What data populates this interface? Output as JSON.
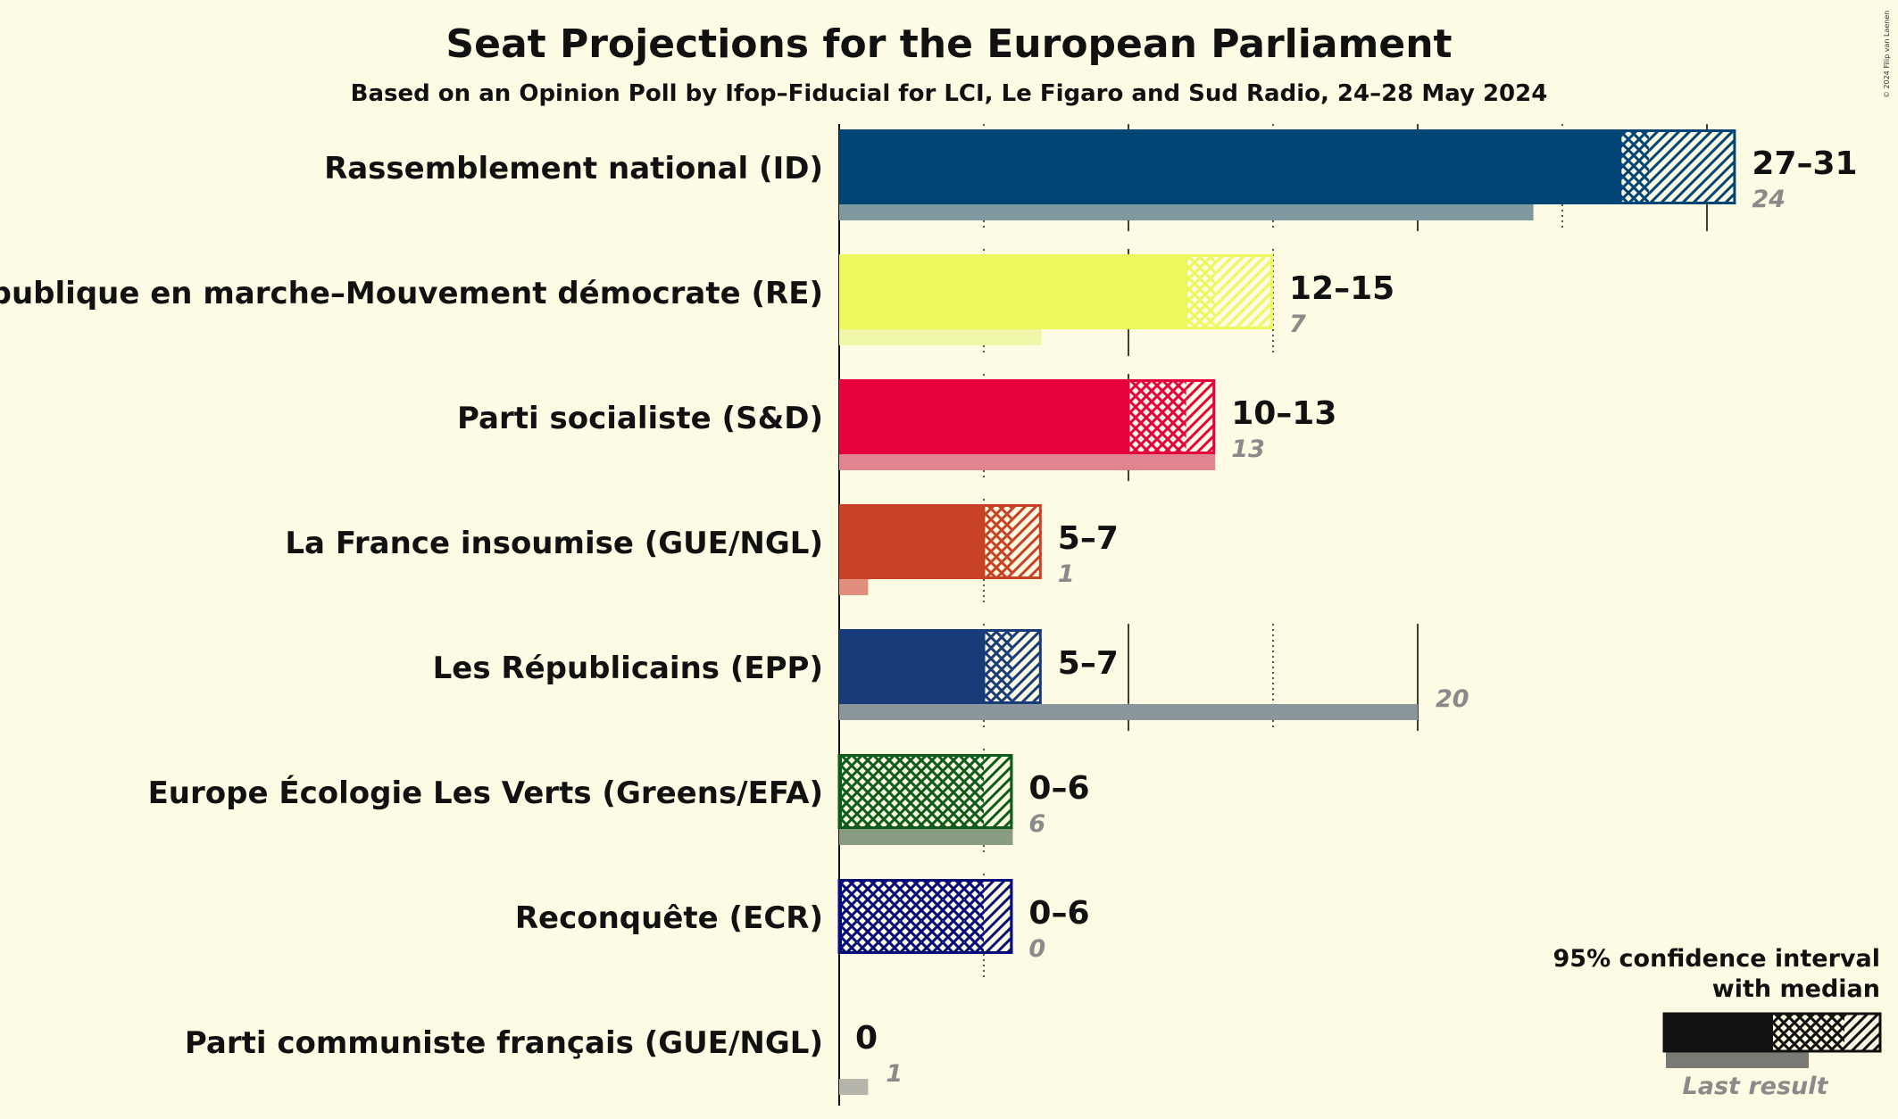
{
  "chart_data": {
    "type": "bar",
    "orientation": "horizontal",
    "title": "Seat Projections for the European Parliament",
    "subtitle": "Based on an Opinion Poll by Ifop–Fiducial for LCI, Le Figaro and Sud Radio, 24–28 May 2024",
    "copyright": "© 2024 Filip van Laenen",
    "grid": "vertical lines every 5 seats (dotted at odd multiples of 5)",
    "xlim": [
      0,
      31
    ],
    "legend": {
      "position": "bottom-right",
      "title_line1": "95% confidence interval",
      "title_line2": "with median",
      "last_label": "Last result"
    },
    "parties": [
      {
        "name": "Rassemblement national (ID)",
        "low": 27,
        "median": 28,
        "high": 31,
        "label": "27–31",
        "last": 24,
        "last_label": "24",
        "color": "#004576",
        "last_color": "#7e9aa0"
      },
      {
        "name": "La République en marche–Mouvement démocrate (RE)",
        "low": 12,
        "median": 13,
        "high": 15,
        "label": "12–15",
        "last": 7,
        "last_label": "7",
        "color": "#ecf85c",
        "last_color": "#f1f7a8"
      },
      {
        "name": "Parti socialiste (S&D)",
        "low": 10,
        "median": 12,
        "high": 13,
        "label": "10–13",
        "last": 13,
        "last_label": "13",
        "color": "#e5003e",
        "last_color": "#e08590"
      },
      {
        "name": "La France insoumise (GUE/NGL)",
        "low": 5,
        "median": 6,
        "high": 7,
        "label": "5–7",
        "last": 1,
        "last_label": "1",
        "color": "#c84226",
        "last_color": "#df8f7c"
      },
      {
        "name": "Les Républicains (EPP)",
        "low": 5,
        "median": 6,
        "high": 7,
        "label": "5–7",
        "last": 20,
        "last_label": "20",
        "color": "#173c79",
        "last_color": "#8a969b"
      },
      {
        "name": "Europe Écologie Les Verts (Greens/EFA)",
        "low": 0,
        "median": 5,
        "high": 6,
        "label": "0–6",
        "last": 6,
        "last_label": "6",
        "color": "#0e5b1c",
        "last_color": "#899b80"
      },
      {
        "name": "Reconquête (ECR)",
        "low": 0,
        "median": 5,
        "high": 6,
        "label": "0–6",
        "last": 0,
        "last_label": "0",
        "color": "#050d7a",
        "last_color": "#9a9a9a"
      },
      {
        "name": "Parti communiste français (GUE/NGL)",
        "low": 0,
        "median": 0,
        "high": 0,
        "label": "0",
        "last": 1,
        "last_label": "1",
        "color": "#b71f22",
        "last_color": "#b5b5ac"
      }
    ]
  }
}
